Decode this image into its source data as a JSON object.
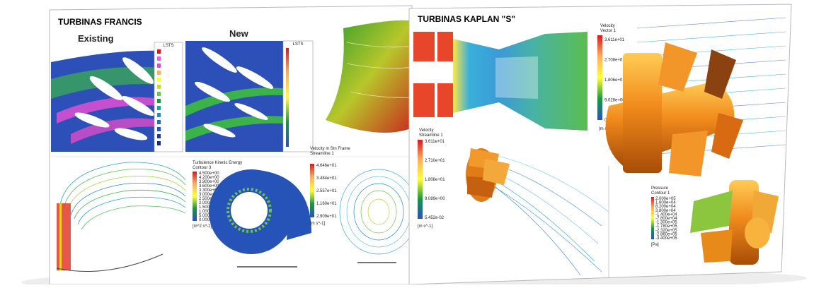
{
  "left_slide": {
    "title": "TURBINAS FRANCIS",
    "existing_label": "Existing",
    "new_label": "New",
    "legend_small_1": {
      "title": "LSTS"
    },
    "legend_small_2": {
      "title": "LSTS"
    },
    "tke_legend": {
      "title": "Turbulence Kinetic Energy",
      "subtitle": "Contour 3",
      "values": [
        "4.500e+00",
        "4.200e+00",
        "3.900e+00",
        "3.600e+00",
        "3.300e+00",
        "3.000e+00",
        "2.500e+00",
        "2.000e+00",
        "1.500e+00",
        "1.000e+00",
        "5.000e-01",
        "0.000e+00"
      ],
      "unit": "[m^2 s^-2]"
    },
    "vel_legend": {
      "title": "Velocity in Stn Frame",
      "subtitle": "Streamline 1",
      "values": [
        "4.646e+01",
        "3.484e+01",
        "2.557e+01",
        "1.160e+01",
        "2.909e+01"
      ],
      "unit": "[m s^-1]"
    }
  },
  "right_slide": {
    "title": "TURBINAS KAPLAN \"S\"",
    "vec_legend": {
      "title": "Velocity",
      "subtitle": "Vector 1",
      "values": [
        "3.611e+01",
        "2.708e+01",
        "1.806e+01",
        "9.028e+00",
        "0.000e+00"
      ],
      "unit": "[m s^-1]"
    },
    "stream_legend": {
      "title": "Velocity",
      "subtitle": "Streamline 1",
      "values": [
        "3.611e+01",
        "2.710e+01",
        "1.808e+01",
        "9.089e+00",
        "5.452e-02"
      ],
      "unit": "[m s^-1]"
    },
    "pressure_legend": {
      "title": "Pressure",
      "subtitle": "Contour 1",
      "values": [
        "2.000e+05",
        "1.600e+04",
        "8.200e+04",
        "3.800e+04",
        "-1.400e+04",
        "-7.800e+04",
        "-1.300e+05",
        "-1.780e+05",
        "-2.320e+05",
        "-2.860e+05",
        "-3.400e+05"
      ],
      "unit": "[Pa]"
    }
  },
  "colors": {
    "accent_orange": "#e8841a",
    "flow_blue": "#2d5fb5",
    "flow_green": "#55b548"
  }
}
